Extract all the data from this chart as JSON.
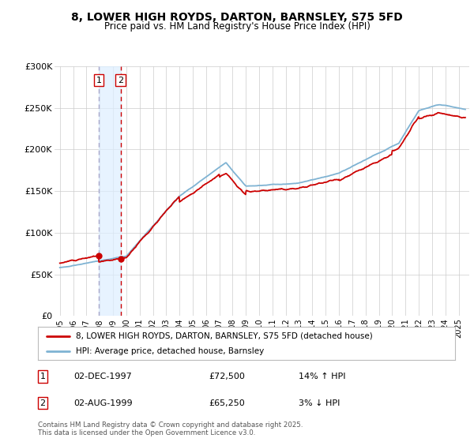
{
  "title": "8, LOWER HIGH ROYDS, DARTON, BARNSLEY, S75 5FD",
  "subtitle": "Price paid vs. HM Land Registry's House Price Index (HPI)",
  "ylim": [
    0,
    300000
  ],
  "yticks": [
    0,
    50000,
    100000,
    150000,
    200000,
    250000,
    300000
  ],
  "ytick_labels": [
    "£0",
    "£50K",
    "£100K",
    "£150K",
    "£200K",
    "£250K",
    "£300K"
  ],
  "transactions": [
    {
      "date_num": 1997.92,
      "price": 72500,
      "label": "1",
      "pct": "14% ↑ HPI",
      "date_str": "02-DEC-1997"
    },
    {
      "date_num": 1999.58,
      "price": 65250,
      "label": "2",
      "pct": "3% ↓ HPI",
      "date_str": "02-AUG-1999"
    }
  ],
  "legend_label_red": "8, LOWER HIGH ROYDS, DARTON, BARNSLEY, S75 5FD (detached house)",
  "legend_label_blue": "HPI: Average price, detached house, Barnsley",
  "footnote": "Contains HM Land Registry data © Crown copyright and database right 2025.\nThis data is licensed under the Open Government Licence v3.0.",
  "red_color": "#cc0000",
  "blue_color": "#7fb3d3",
  "bg_color": "#ffffff",
  "grid_color": "#cccccc",
  "vline1_color": "#aaaacc",
  "vline2_color": "#cc0000",
  "shaded_color": "#ddeeff",
  "xtick_years": [
    1995,
    1996,
    1997,
    1998,
    1999,
    2000,
    2001,
    2002,
    2003,
    2004,
    2005,
    2006,
    2007,
    2008,
    2009,
    2010,
    2011,
    2012,
    2013,
    2014,
    2015,
    2016,
    2017,
    2018,
    2019,
    2020,
    2021,
    2022,
    2023,
    2024,
    2025
  ],
  "xlim": [
    1994.6,
    2025.8
  ]
}
